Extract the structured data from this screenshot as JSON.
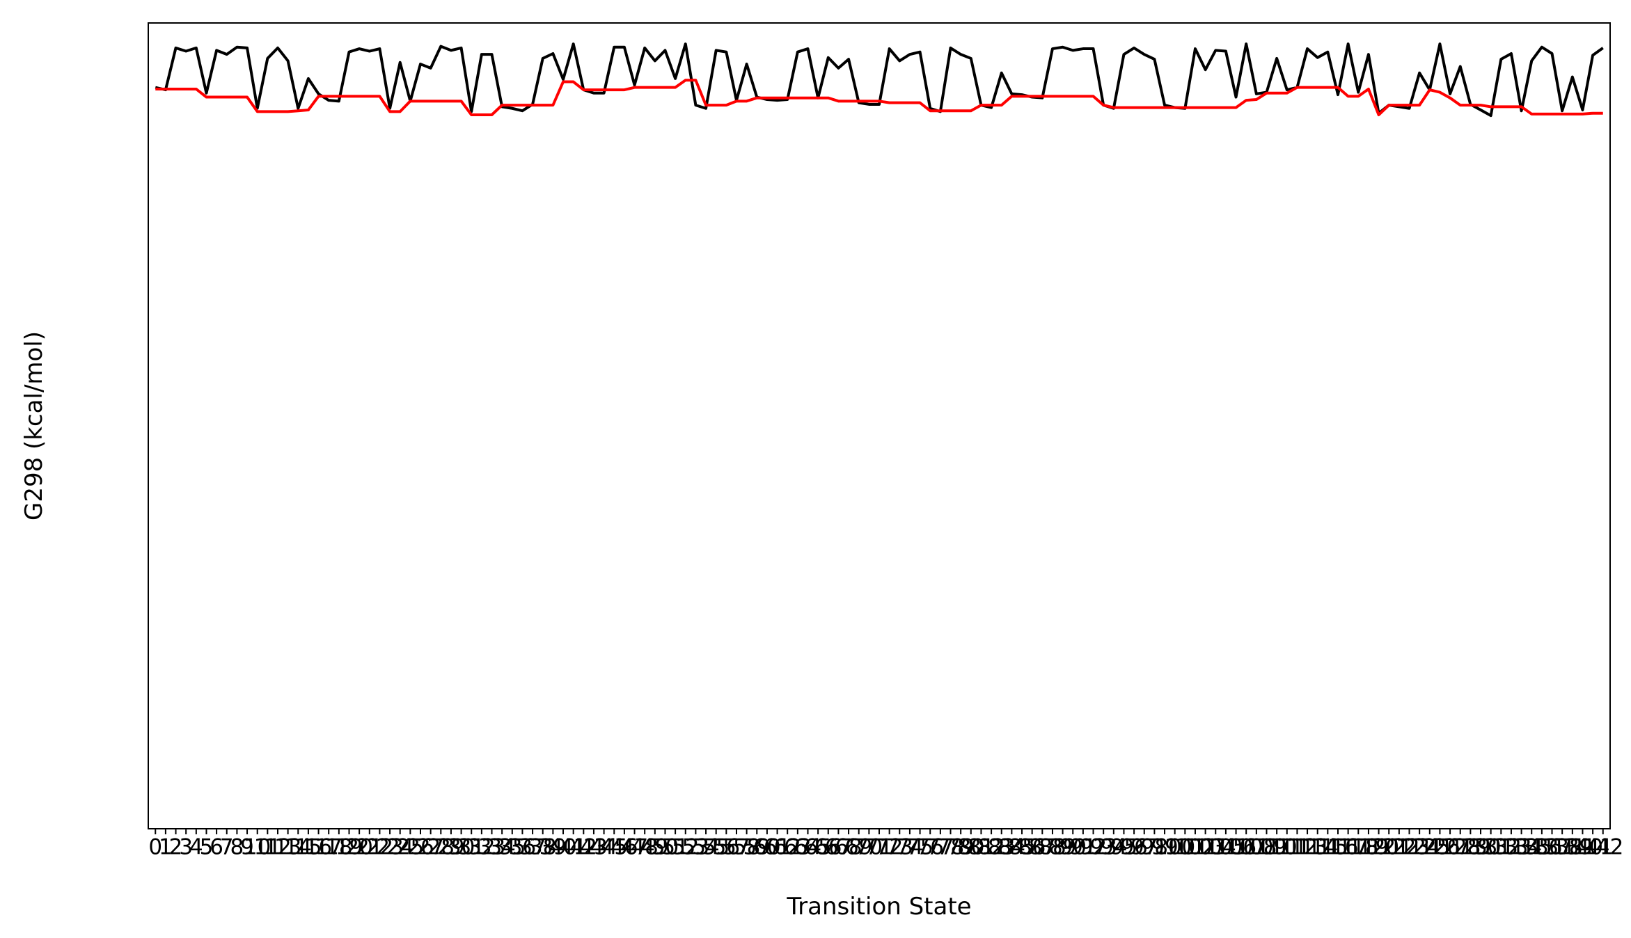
{
  "chart_data": {
    "type": "line",
    "x_label": "Transition State",
    "y_label": "G298 (kcal/mol)",
    "x": [
      0,
      1,
      2,
      3,
      4,
      5,
      6,
      7,
      8,
      9,
      10,
      11,
      12,
      13,
      14,
      15,
      16,
      17,
      18,
      19,
      20,
      21,
      22,
      23,
      24,
      25,
      26,
      27,
      28,
      29,
      30,
      31,
      32,
      33,
      34,
      35,
      36,
      37,
      38,
      39,
      40,
      41,
      42,
      43,
      44,
      45,
      46,
      47,
      48,
      49,
      50,
      51,
      52,
      53,
      54,
      55,
      56,
      57,
      58,
      59,
      60,
      61,
      62,
      63,
      64,
      65,
      66,
      67,
      68,
      69,
      70,
      71,
      72,
      73,
      74,
      75,
      76,
      77,
      78,
      79,
      80,
      81,
      82,
      83,
      84,
      85,
      86,
      87,
      88,
      89,
      90,
      91,
      92,
      93,
      94,
      95,
      96,
      97,
      98,
      99,
      100,
      101,
      102,
      103,
      104,
      105,
      106,
      107,
      108,
      109,
      110,
      111,
      112,
      113,
      114,
      115,
      116,
      117,
      118,
      119,
      120,
      121,
      122,
      123,
      124,
      125,
      126,
      127,
      128,
      129,
      130,
      131,
      132,
      133,
      134,
      135,
      136,
      137,
      138,
      139,
      140,
      141,
      142
    ],
    "xticks": [
      0,
      1,
      2,
      3,
      4,
      5,
      6,
      7,
      8,
      9,
      10,
      11,
      12,
      13,
      14,
      15,
      16,
      17,
      18,
      19,
      20,
      21,
      22,
      23,
      24,
      25,
      26,
      27,
      28,
      29,
      30,
      31,
      32,
      33,
      34,
      35,
      36,
      37,
      38,
      39,
      40,
      41,
      42,
      43,
      44,
      45,
      46,
      47,
      48,
      49,
      50,
      51,
      52,
      53,
      54,
      55,
      56,
      57,
      58,
      59,
      60,
      61,
      62,
      63,
      64,
      65,
      66,
      67,
      68,
      69,
      70,
      71,
      72,
      73,
      74,
      75,
      76,
      77,
      78,
      79,
      80,
      81,
      82,
      83,
      84,
      85,
      86,
      87,
      88,
      89,
      90,
      91,
      92,
      93,
      94,
      95,
      96,
      97,
      98,
      99,
      100,
      101,
      102,
      103,
      104,
      105,
      106,
      107,
      108,
      109,
      110,
      111,
      112,
      113,
      114,
      115,
      116,
      117,
      118,
      119,
      120,
      121,
      122,
      123,
      124,
      125,
      126,
      127,
      128,
      129,
      130,
      131,
      132,
      133,
      134,
      135,
      136,
      137,
      138,
      139,
      140,
      141,
      142
    ],
    "xlim": [
      -0.7,
      142.7
    ],
    "ylim": [
      0,
      100
    ],
    "series": [
      {
        "color": "#000000",
        "values": [
          92.0,
          91.7,
          96.9,
          96.5,
          96.9,
          91.3,
          96.6,
          96.1,
          97.0,
          96.9,
          89.4,
          95.6,
          96.9,
          95.3,
          89.4,
          93.1,
          91.2,
          90.4,
          90.3,
          96.4,
          96.8,
          96.5,
          96.8,
          89.4,
          95.1,
          90.3,
          94.9,
          94.4,
          97.1,
          96.6,
          96.9,
          89.0,
          96.1,
          96.1,
          89.6,
          89.4,
          89.1,
          89.9,
          95.6,
          96.2,
          93.0,
          97.4,
          91.7,
          91.3,
          91.3,
          97.0,
          97.0,
          92.3,
          96.9,
          95.3,
          96.6,
          93.1,
          97.4,
          89.8,
          89.4,
          96.6,
          96.4,
          90.4,
          94.9,
          90.8,
          90.5,
          90.4,
          90.5,
          96.4,
          96.8,
          90.7,
          95.7,
          94.4,
          95.5,
          90.1,
          89.9,
          89.9,
          96.8,
          95.3,
          96.1,
          96.4,
          89.4,
          89.0,
          96.9,
          96.1,
          95.6,
          89.8,
          89.5,
          93.8,
          91.2,
          91.1,
          90.8,
          90.7,
          96.8,
          97.0,
          96.6,
          96.8,
          96.8,
          89.8,
          89.4,
          96.1,
          96.9,
          96.1,
          95.5,
          89.8,
          89.5,
          89.4,
          96.8,
          94.2,
          96.6,
          96.5,
          90.8,
          97.4,
          91.2,
          91.4,
          95.6,
          91.7,
          92.0,
          96.8,
          95.7,
          96.4,
          91.1,
          97.4,
          91.4,
          96.1,
          88.8,
          89.8,
          89.6,
          89.4,
          93.8,
          91.7,
          97.4,
          91.2,
          94.6,
          89.9,
          89.2,
          88.5,
          95.5,
          96.2,
          89.1,
          95.3,
          97.0,
          96.2,
          89.1,
          93.3,
          89.2,
          96.0,
          96.9
        ]
      },
      {
        "color": "#ff0000",
        "values": [
          91.8,
          91.8,
          91.8,
          91.8,
          91.8,
          90.8,
          90.8,
          90.8,
          90.8,
          90.8,
          89.0,
          89.0,
          89.0,
          89.0,
          89.1,
          89.2,
          90.9,
          90.9,
          90.9,
          90.9,
          90.9,
          90.9,
          90.9,
          89.0,
          89.0,
          90.3,
          90.3,
          90.3,
          90.3,
          90.3,
          90.3,
          88.6,
          88.6,
          88.6,
          89.8,
          89.8,
          89.8,
          89.8,
          89.8,
          89.8,
          92.7,
          92.7,
          91.7,
          91.7,
          91.7,
          91.7,
          91.7,
          92.0,
          92.0,
          92.0,
          92.0,
          92.0,
          92.9,
          92.9,
          89.8,
          89.8,
          89.8,
          90.3,
          90.3,
          90.7,
          90.7,
          90.7,
          90.7,
          90.7,
          90.7,
          90.7,
          90.7,
          90.3,
          90.3,
          90.3,
          90.3,
          90.3,
          90.1,
          90.1,
          90.1,
          90.1,
          89.1,
          89.1,
          89.1,
          89.1,
          89.1,
          89.8,
          89.8,
          89.8,
          90.9,
          90.9,
          90.9,
          90.9,
          90.9,
          90.9,
          90.9,
          90.9,
          90.9,
          89.8,
          89.5,
          89.5,
          89.5,
          89.5,
          89.5,
          89.5,
          89.5,
          89.5,
          89.5,
          89.5,
          89.5,
          89.5,
          89.5,
          90.4,
          90.5,
          91.3,
          91.3,
          91.3,
          92.0,
          92.0,
          92.0,
          92.0,
          92.0,
          90.9,
          90.9,
          91.8,
          88.6,
          89.8,
          89.8,
          89.8,
          89.8,
          91.7,
          91.4,
          90.7,
          89.8,
          89.8,
          89.8,
          89.6,
          89.6,
          89.6,
          89.6,
          88.7,
          88.7,
          88.7,
          88.7,
          88.7,
          88.7,
          88.8,
          88.8
        ]
      }
    ]
  }
}
